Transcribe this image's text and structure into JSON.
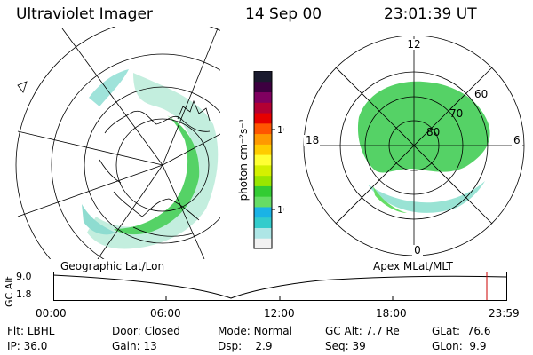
{
  "header": {
    "instrument": "Ultraviolet Imager",
    "date": "14 Sep 00",
    "time": "23:01:39 UT"
  },
  "colorbar": {
    "unit_label": "photon cm⁻²s⁻¹",
    "scale": "log",
    "tick_labels": [
      "100",
      "10"
    ],
    "colors": [
      "#f2f2f2",
      "#aee6e6",
      "#33cccc",
      "#1ab3e6",
      "#66dd66",
      "#33cc33",
      "#99e600",
      "#d4f000",
      "#ffff33",
      "#ffcc00",
      "#ff9900",
      "#ff5500",
      "#e60000",
      "#b30033",
      "#800060",
      "#3d0040",
      "#1a1a2e"
    ]
  },
  "left_panel": {
    "label": "Geographic Lat/Lon"
  },
  "right_panel": {
    "label": "Apex  MLat/MLT",
    "mlt_labels": {
      "top": "12",
      "left": "18",
      "right": "6",
      "bottom": "0"
    },
    "lat_labels": [
      "60",
      "70",
      "80"
    ]
  },
  "timeline": {
    "y_axis_label": "GC Alt",
    "y_ticks": [
      "9.0",
      "1.8"
    ],
    "x_ticks": [
      "00:00",
      "06:00",
      "12:00",
      "18:00",
      "23:59"
    ],
    "current_marker_color": "#cc0000"
  },
  "info": {
    "row1": [
      {
        "label": "Flt:",
        "value": "LBHL"
      },
      {
        "label": "Door:",
        "value": "Closed"
      },
      {
        "label": "Mode:",
        "value": "Normal"
      },
      {
        "label": "GC Alt:",
        "value": "7.7 Re"
      },
      {
        "label": "GLat:",
        "value": "76.6"
      }
    ],
    "row2": [
      {
        "label": "IP:",
        "value": "36.0"
      },
      {
        "label": "Gain:",
        "value": "13"
      },
      {
        "label": "Dsp:",
        "value": "2.9"
      },
      {
        "label": "Seq:",
        "value": "39"
      },
      {
        "label": "GLon:",
        "value": "9.9"
      }
    ]
  }
}
